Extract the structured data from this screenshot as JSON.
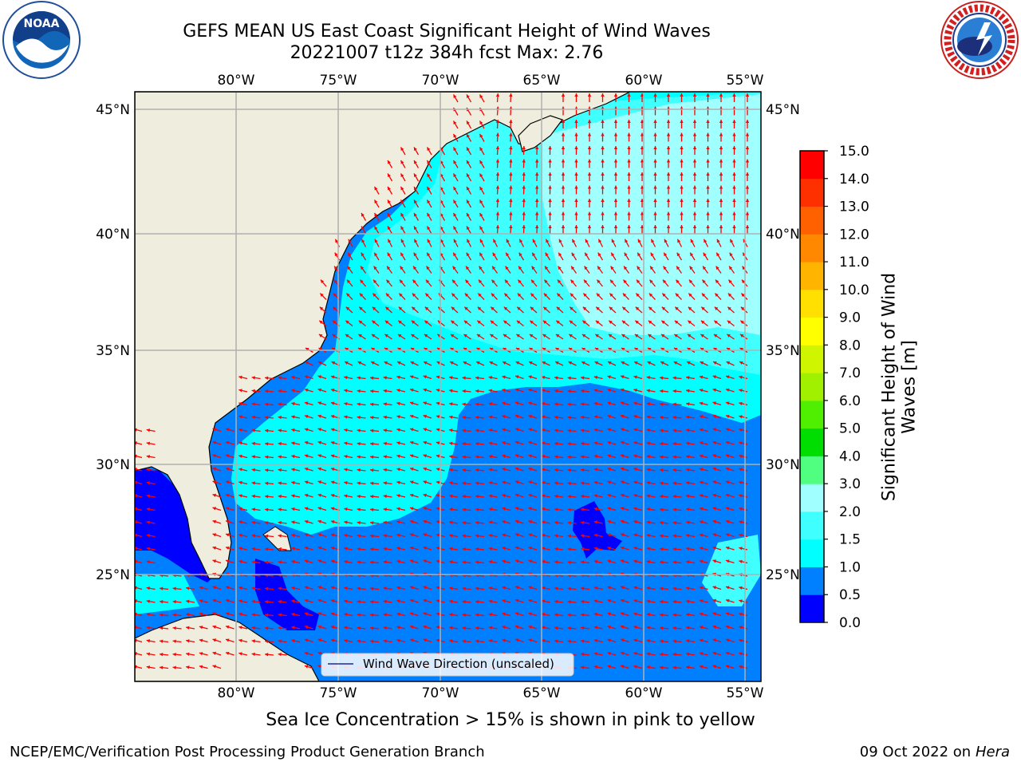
{
  "title_line1": "GEFS MEAN US East Coast Significant Height of Wind Waves",
  "title_line2": "20221007 t12z 384h fcst   Max: 2.76",
  "logos": {
    "noaa_text": "NOAA",
    "nws_text": "NATIONAL WEATHER SERVICE"
  },
  "map": {
    "lon_labels": [
      "80°W",
      "75°W",
      "70°W",
      "65°W",
      "60°W",
      "55°W"
    ],
    "lat_labels": [
      "45°N",
      "40°N",
      "35°N",
      "30°N",
      "25°N"
    ],
    "legend_label": "Wind Wave Direction (unscaled)",
    "colors": {
      "land": "#efedde",
      "gridline": "#b0b0b0",
      "arrow": "#ff0000"
    }
  },
  "colorbar": {
    "label_line1": "Significant Height of Wind",
    "label_line2": "Waves [m]",
    "ticks": [
      "15.0",
      "14.0",
      "13.0",
      "12.0",
      "11.0",
      "10.0",
      "9.0",
      "8.0",
      "7.0",
      "6.0",
      "5.0",
      "4.0",
      "3.0",
      "2.0",
      "1.5",
      "1.0",
      "0.5",
      "0.0"
    ],
    "colors": [
      "#0000ff",
      "#0080ff",
      "#00ffff",
      "#40ffff",
      "#a0ffff",
      "#50ff80",
      "#00dd00",
      "#50ee00",
      "#a0f000",
      "#d0f500",
      "#ffff00",
      "#ffe000",
      "#ffb400",
      "#ff8800",
      "#ff6000",
      "#ff3000",
      "#ff0000"
    ]
  },
  "footer_note": "Sea Ice Concentration > 15% is shown in pink to yellow",
  "footer_left": "NCEP/EMC/Verification Post Processing Product Generation Branch",
  "footer_date": "09 Oct 2022 on",
  "footer_host": "Hera"
}
